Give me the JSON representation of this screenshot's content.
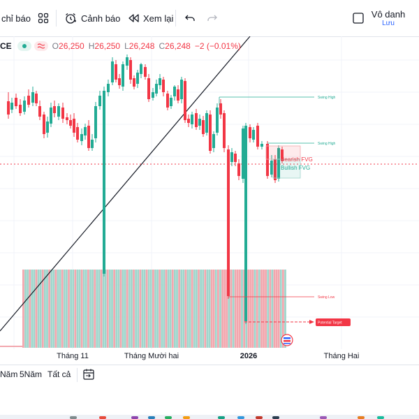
{
  "toolbar": {
    "indicators_label": "chỉ báo",
    "alert_label": "Cảnh báo",
    "replay_label": "Xem lại",
    "user_name": "Vô danh",
    "save_label": "Lưu"
  },
  "legend": {
    "symbol_fragment": "CE",
    "open_key": "O",
    "open": "26,250",
    "high_key": "H",
    "high": "26,250",
    "low_key": "L",
    "low": "26,248",
    "close_key": "C",
    "close": "26,248",
    "change": "−2 (−0.01%)"
  },
  "annotations": {
    "swing_high": "Swing High",
    "bearish_fvg": "Bearish FVG",
    "bullish_fvg": "Bullish FVG",
    "swing_low": "Swing Low",
    "potential_target": "Potential Target"
  },
  "time_axis": [
    "Tháng 11",
    "Tháng Mười hai",
    "2026",
    "Tháng Hai"
  ],
  "range_bar": [
    "Năm",
    "5Năm",
    "Tất cả"
  ],
  "colors": {
    "up": "#22ab94",
    "down": "#f23645",
    "vp_up": "#9fd6cc",
    "vp_down": "#f2a7ae",
    "accent": "#2962ff"
  },
  "icons": [
    "indicators-grid-icon",
    "alert-clock-icon",
    "replay-icon",
    "undo-icon",
    "redo-icon",
    "checkbox-icon",
    "calendar-range-icon",
    "tradingview-badge-icon"
  ]
}
